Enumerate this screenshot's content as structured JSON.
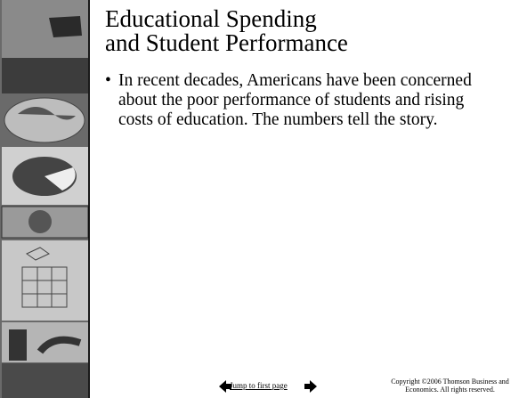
{
  "slide": {
    "title_lines": [
      "Educational Spending",
      "and Student Performance"
    ],
    "bullets": [
      "In recent decades, Americans have been concerned about the poor performance of students and rising costs of education. The numbers tell the story."
    ],
    "nav_link": "Jump to first page",
    "copyright_lines": [
      "Copyright ©2006  Thomson Business and",
      "Economics. All rights reserved."
    ]
  }
}
